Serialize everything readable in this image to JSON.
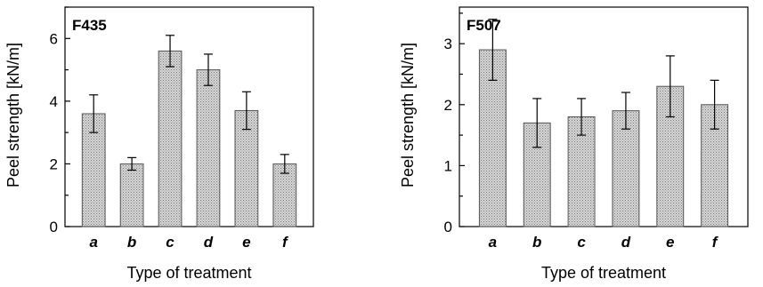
{
  "chart_data": [
    {
      "type": "bar",
      "title": "F435",
      "xlabel": "Type of treatment",
      "ylabel": "Peel strength [kN/m]",
      "categories": [
        "a",
        "b",
        "c",
        "d",
        "e",
        "f"
      ],
      "values": [
        3.6,
        2.0,
        5.6,
        5.0,
        3.7,
        2.0
      ],
      "errors": [
        0.6,
        0.2,
        0.5,
        0.5,
        0.6,
        0.3
      ],
      "ylim": [
        0,
        7
      ],
      "yticks": [
        0,
        2,
        4,
        6
      ],
      "yticks_minor": [
        1,
        3,
        5,
        7
      ],
      "grid": false,
      "bar_color": "#bdbdbd"
    },
    {
      "type": "bar",
      "title": "F507",
      "xlabel": "Type of treatment",
      "ylabel": "Peel strength [kN/m]",
      "categories": [
        "a",
        "b",
        "c",
        "d",
        "e",
        "f"
      ],
      "values": [
        2.9,
        1.7,
        1.8,
        1.9,
        2.3,
        2.0
      ],
      "errors": [
        0.5,
        0.4,
        0.3,
        0.3,
        0.5,
        0.4
      ],
      "ylim": [
        0,
        3.6
      ],
      "yticks": [
        0,
        1,
        2,
        3
      ],
      "yticks_minor": [
        0.5,
        1.5,
        2.5,
        3.5
      ],
      "grid": false,
      "bar_color": "#bdbdbd"
    }
  ]
}
